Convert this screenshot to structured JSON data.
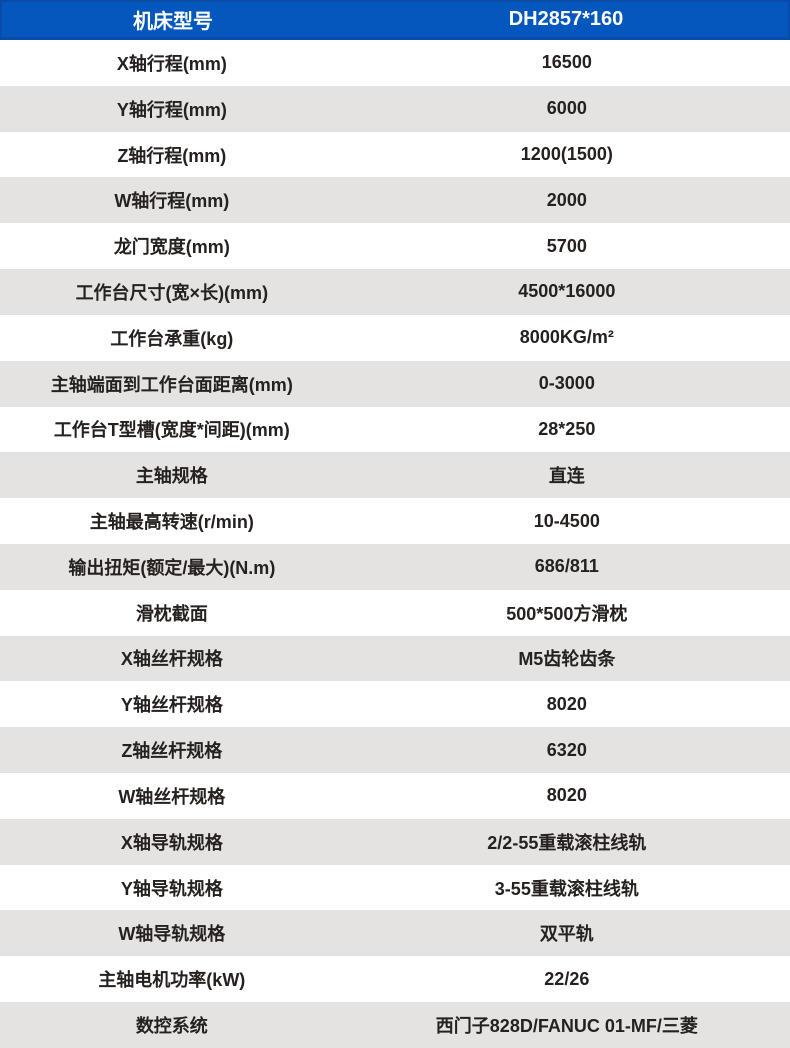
{
  "header": {
    "model_label": "机床型号",
    "model_value": "DH2857*160"
  },
  "rows": [
    {
      "label": "X轴行程(mm)",
      "value": "16500"
    },
    {
      "label": "Y轴行程(mm)",
      "value": "6000"
    },
    {
      "label": "Z轴行程(mm)",
      "value": "1200(1500)"
    },
    {
      "label": "W轴行程(mm)",
      "value": "2000"
    },
    {
      "label": "龙门宽度(mm)",
      "value": "5700"
    },
    {
      "label": "工作台尺寸(宽×长)(mm)",
      "value": "4500*16000"
    },
    {
      "label": "工作台承重(kg)",
      "value": "8000KG/m²"
    },
    {
      "label": "主轴端面到工作台面距离(mm)",
      "value": "0-3000"
    },
    {
      "label": "工作台T型槽(宽度*间距)(mm)",
      "value": "28*250"
    },
    {
      "label": "主轴规格",
      "value": "直连"
    },
    {
      "label": "主轴最高转速(r/min)",
      "value": "10-4500"
    },
    {
      "label": "输出扭矩(额定/最大)(N.m)",
      "value": "686/811"
    },
    {
      "label": "滑枕截面",
      "value": "500*500方滑枕"
    },
    {
      "label": "X轴丝杆规格",
      "value": "M5齿轮齿条"
    },
    {
      "label": "Y轴丝杆规格",
      "value": "8020"
    },
    {
      "label": "Z轴丝杆规格",
      "value": "6320"
    },
    {
      "label": "W轴丝杆规格",
      "value": "8020"
    },
    {
      "label": "X轴导轨规格",
      "value": "2/2-55重载滚柱线轨"
    },
    {
      "label": "Y轴导轨规格",
      "value": "3-55重载滚柱线轨"
    },
    {
      "label": "W轴导轨规格",
      "value": "双平轨"
    },
    {
      "label": "主轴电机功率(kW)",
      "value": "22/26"
    },
    {
      "label": "数控系统",
      "value": "西门子828D/FANUC 01-MF/三菱"
    }
  ],
  "colors": {
    "header_bg": "#0357BD",
    "header_border": "#0A4CA5",
    "header_text": "#FFFFFF",
    "row_alt_bg": "#E4E3E1",
    "row_text": "#26211E"
  }
}
